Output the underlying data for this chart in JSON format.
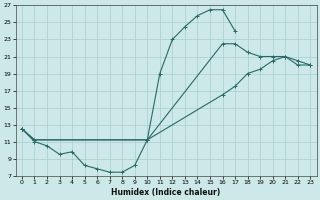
{
  "xlabel": "Humidex (Indice chaleur)",
  "bg_color": "#cce8e8",
  "grid_color": "#aacece",
  "line_color": "#2a6868",
  "xlim": [
    -0.5,
    23.5
  ],
  "ylim": [
    7,
    27
  ],
  "yticks": [
    7,
    9,
    11,
    13,
    15,
    17,
    19,
    21,
    23,
    25,
    27
  ],
  "xticks": [
    0,
    1,
    2,
    3,
    4,
    5,
    6,
    7,
    8,
    9,
    10,
    11,
    12,
    13,
    14,
    15,
    16,
    17,
    18,
    19,
    20,
    21,
    22,
    23
  ],
  "line1_x": [
    0,
    1,
    2,
    3,
    4,
    5,
    6,
    7,
    8,
    9,
    10,
    11,
    12,
    13,
    14,
    15,
    16,
    17
  ],
  "line1_y": [
    12.5,
    11,
    10.5,
    9.5,
    9.8,
    8.2,
    7.8,
    7.4,
    7.4,
    8.2,
    11.2,
    19.0,
    23.0,
    24.5,
    25.8,
    26.5,
    26.5,
    24.0
  ],
  "line2_x": [
    0,
    1,
    10,
    16,
    17,
    18,
    19,
    20,
    21,
    22,
    23
  ],
  "line2_y": [
    12.5,
    11.2,
    11.2,
    16.5,
    17.5,
    19.0,
    19.5,
    20.5,
    21.0,
    20.5,
    20.0
  ],
  "line3_x": [
    0,
    1,
    10,
    16,
    17,
    18,
    19,
    20,
    21,
    22,
    23
  ],
  "line3_y": [
    12.5,
    11.2,
    11.2,
    22.5,
    22.5,
    21.5,
    21.0,
    21.0,
    21.0,
    20.0,
    20.0
  ]
}
